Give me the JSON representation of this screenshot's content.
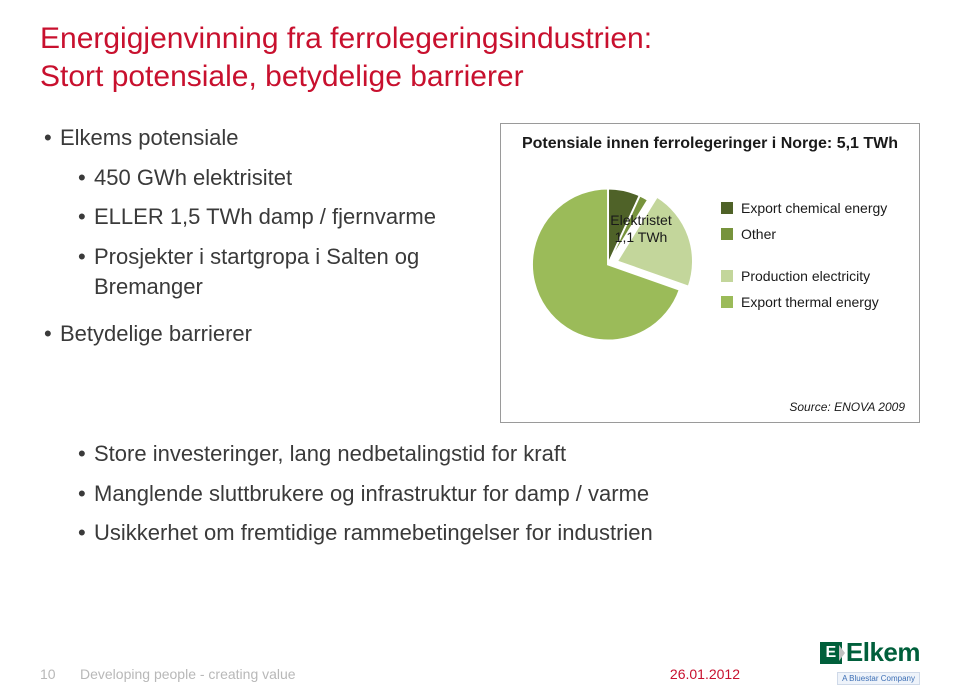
{
  "title_line1": "Energigjenvinning fra ferrolegeringsindustrien:",
  "title_line2": "Stort potensiale, betydelige barrierer",
  "title_color": "#c8102e",
  "left": {
    "l1_a": "Elkems potensiale",
    "l2_a": "450 GWh elektrisitet",
    "l2_b": "ELLER 1,5 TWh damp / fjernvarme",
    "l2_c": "Prosjekter i startgropa i Salten og Bremanger",
    "l1_b": "Betydelige barrierer"
  },
  "lower": {
    "b1": "Store investeringer, lang nedbetalingstid for kraft",
    "b2": "Manglende sluttbrukere og infrastruktur for damp / varme",
    "b3": "Usikkerhet om fremtidige rammebetingelser for industrien"
  },
  "chart": {
    "type": "pie",
    "title": "Potensiale innen ferrolegeringer i Norge: 5,1 TWh",
    "slices": [
      {
        "label": "Export chemical energy",
        "value": 0.35,
        "color": "#4f6228"
      },
      {
        "label": "Other",
        "value": 0.1,
        "color": "#77933c"
      },
      {
        "label": "Production electricity",
        "value": 1.1,
        "color": "#c3d69b"
      },
      {
        "label": "Export thermal energy",
        "value": 3.55,
        "color": "#9bbb59"
      }
    ],
    "total": 5.1,
    "callout_label": "Elektristet 1,1 TWh",
    "callout_slice_index": 2,
    "background_color": "#ffffff",
    "border_color": "#9a9a9a",
    "stroke_color": "#ffffff",
    "stroke_width": 2,
    "legend_fontsize": 14,
    "title_fontsize": 16,
    "source": "Source: ENOVA 2009"
  },
  "footer": {
    "page": "10",
    "tagline": "Developing people - creating value",
    "date": "26.01.2012"
  },
  "logo": {
    "brand": "Elkem",
    "sub": "A Bluestar Company",
    "brand_color": "#005f3b"
  }
}
